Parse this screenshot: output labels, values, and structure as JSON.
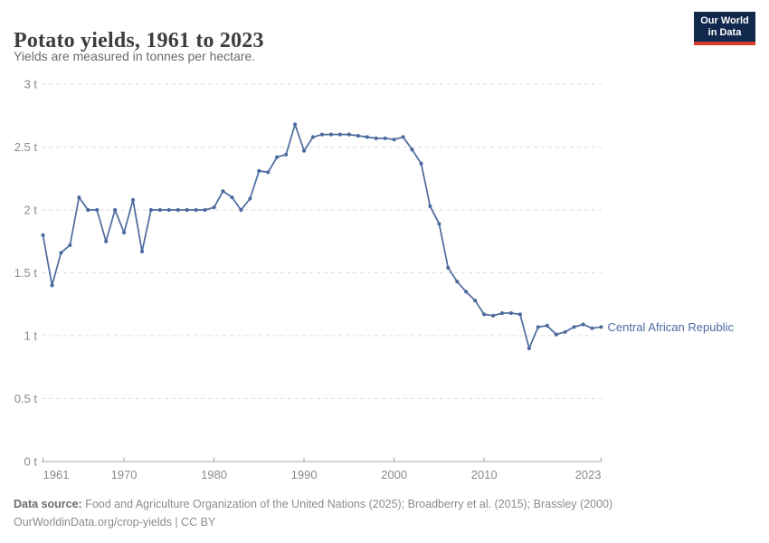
{
  "header": {
    "title": "Potato yields, 1961 to 2023",
    "subtitle": "Yields are measured in tonnes per hectare.",
    "logo": {
      "line1": "Our World",
      "line2": "in Data"
    }
  },
  "colors": {
    "series_blue": "#4c6a9e",
    "logo_bg": "#12294e",
    "logo_red": "#d93b2c",
    "grid_gray": "#dcdcdc",
    "axis_gray": "#a5a5a5",
    "tick_label_gray": "#8a8a8a"
  },
  "chart_data": {
    "type": "line",
    "title": "Potato yields, 1961 to 2023",
    "unit": "tonnes per hectare",
    "xlabel": "",
    "ylabel": "",
    "xlim": [
      1961,
      2023
    ],
    "ylim": [
      0,
      3
    ],
    "x_ticks": [
      1961,
      1970,
      1980,
      1990,
      2000,
      2010,
      2023
    ],
    "y_ticks": [
      0,
      0.5,
      1,
      1.5,
      2,
      2.5,
      3
    ],
    "y_tick_labels": [
      "0 t",
      "0.5 t",
      "1 t",
      "1.5 t",
      "2 t",
      "2.5 t",
      "3 t"
    ],
    "grid": "horizontal-dashed",
    "legend": "label-right-of-last-point",
    "series": [
      {
        "name": "Central African Republic",
        "color": "#4c6a9e",
        "x": [
          1961,
          1962,
          1963,
          1964,
          1965,
          1966,
          1967,
          1968,
          1969,
          1970,
          1971,
          1972,
          1973,
          1974,
          1975,
          1976,
          1977,
          1978,
          1979,
          1980,
          1981,
          1982,
          1983,
          1984,
          1985,
          1986,
          1987,
          1988,
          1989,
          1990,
          1991,
          1992,
          1993,
          1994,
          1995,
          1996,
          1997,
          1998,
          1999,
          2000,
          2001,
          2002,
          2003,
          2004,
          2005,
          2006,
          2007,
          2008,
          2009,
          2010,
          2011,
          2012,
          2013,
          2014,
          2015,
          2016,
          2017,
          2018,
          2019,
          2020,
          2021,
          2022,
          2023
        ],
        "values": [
          1.8,
          1.4,
          1.66,
          1.72,
          2.1,
          2.0,
          2.0,
          1.75,
          2.0,
          1.82,
          2.08,
          1.67,
          2.0,
          2.0,
          2.0,
          2.0,
          2.0,
          2.0,
          2.0,
          2.02,
          2.15,
          2.1,
          2.0,
          2.09,
          2.31,
          2.3,
          2.42,
          2.44,
          2.68,
          2.47,
          2.58,
          2.6,
          2.6,
          2.6,
          2.6,
          2.59,
          2.58,
          2.57,
          2.57,
          2.56,
          2.58,
          2.48,
          2.37,
          2.03,
          1.89,
          1.54,
          1.43,
          1.35,
          1.28,
          1.17,
          1.16,
          1.18,
          1.18,
          1.17,
          0.9,
          1.07,
          1.08,
          1.01,
          1.03,
          1.07,
          1.09,
          1.06,
          1.07
        ]
      }
    ]
  },
  "footer": {
    "datasource_label": "Data source:",
    "datasource_text": " Food and Agriculture Organization of the United Nations (2025); Broadberry et al. (2015); Brassley (2000)",
    "link": "OurWorldinData.org/crop-yields",
    "license": " | CC BY"
  }
}
